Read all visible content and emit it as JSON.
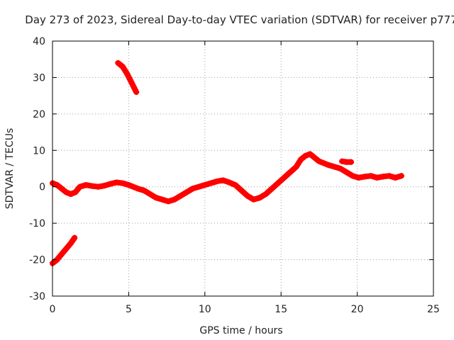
{
  "chart_data": {
    "type": "scatter",
    "title": "Day 273 of 2023, Sidereal Day-to-day VTEC variation (SDTVAR) for receiver p777",
    "xlabel": "GPS time / hours",
    "ylabel": "SDTVAR / TECUs",
    "xlim": [
      0,
      25
    ],
    "ylim": [
      -30,
      40
    ],
    "xticks": [
      0,
      5,
      10,
      15,
      20,
      25
    ],
    "yticks": [
      -30,
      -20,
      -10,
      0,
      10,
      20,
      30,
      40
    ],
    "grid": true,
    "legend": "none",
    "series_color": "#ff0000",
    "series": [
      {
        "name": "main",
        "x": [
          0.0,
          0.3,
          0.6,
          0.9,
          1.2,
          1.5,
          1.8,
          2.2,
          2.6,
          3.0,
          3.4,
          3.8,
          4.2,
          4.6,
          5.0,
          5.3,
          5.6,
          6.0,
          6.4,
          6.8,
          7.2,
          7.6,
          8.0,
          8.4,
          8.8,
          9.2,
          9.6,
          10.0,
          10.4,
          10.8,
          11.2,
          11.6,
          12.0,
          12.4,
          12.8,
          13.2,
          13.6,
          14.0,
          14.4,
          14.8,
          15.2,
          15.6,
          16.0,
          16.3,
          16.6,
          16.9,
          17.2,
          17.5,
          17.8,
          18.1,
          18.5,
          18.9,
          19.3,
          19.7,
          20.1,
          20.5,
          20.9,
          21.3,
          21.7,
          22.1,
          22.5,
          22.9
        ],
        "y": [
          1.0,
          0.5,
          -0.5,
          -1.5,
          -2.0,
          -1.5,
          0.0,
          0.5,
          0.2,
          0.0,
          0.3,
          0.8,
          1.2,
          1.0,
          0.5,
          0.0,
          -0.5,
          -1.0,
          -2.0,
          -3.0,
          -3.5,
          -4.0,
          -3.5,
          -2.5,
          -1.5,
          -0.5,
          0.0,
          0.5,
          1.0,
          1.5,
          1.8,
          1.2,
          0.5,
          -1.0,
          -2.5,
          -3.5,
          -3.0,
          -2.0,
          -0.5,
          1.0,
          2.5,
          4.0,
          5.5,
          7.5,
          8.5,
          9.0,
          8.0,
          7.0,
          6.5,
          6.0,
          5.5,
          5.0,
          4.0,
          3.0,
          2.5,
          2.8,
          3.0,
          2.5,
          2.8,
          3.0,
          2.5,
          3.0
        ]
      },
      {
        "name": "early-drop",
        "x": [
          0.0,
          0.3,
          0.6,
          0.9,
          1.2,
          1.45
        ],
        "y": [
          -21.0,
          -20.0,
          -18.5,
          -17.0,
          -15.5,
          -14.0
        ]
      },
      {
        "name": "high-arc",
        "x": [
          4.3,
          4.6,
          4.9,
          5.2,
          5.5
        ],
        "y": [
          34.0,
          33.0,
          31.0,
          28.5,
          26.0
        ]
      },
      {
        "name": "late-segment",
        "x": [
          19.0,
          19.3,
          19.6
        ],
        "y": [
          7.0,
          6.8,
          6.8
        ]
      }
    ]
  }
}
